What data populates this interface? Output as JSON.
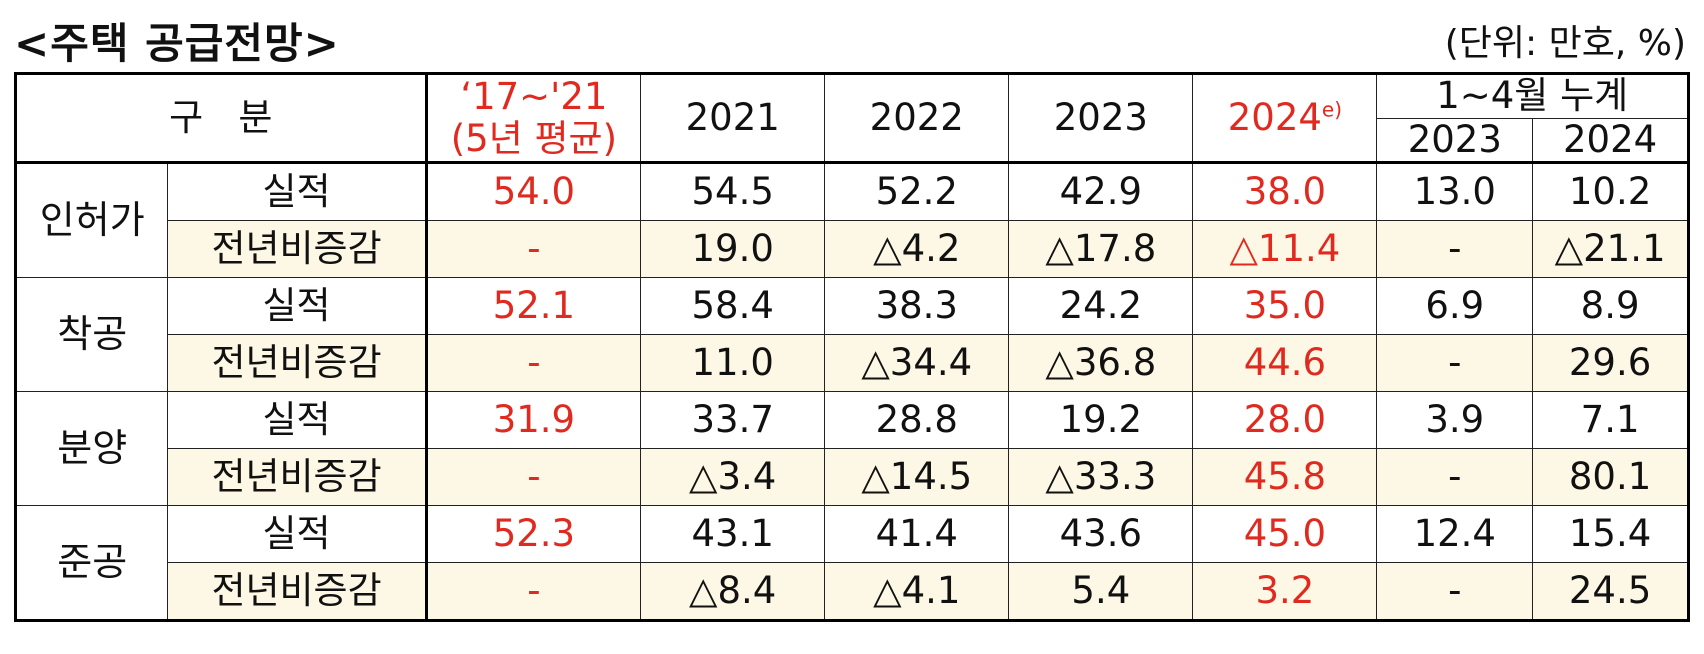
{
  "title": "<주택 공급전망>",
  "unit": "(단위: 만호, %)",
  "header": {
    "category": "구   분",
    "avg_line1": "‘17~'21",
    "avg_line2": "(5년 평균)",
    "y2021": "2021",
    "y2022": "2022",
    "y2023": "2023",
    "y2024": "2024",
    "y2024_sup": "e)",
    "cumulative": "1~4월 누계",
    "cum_2023": "2023",
    "cum_2024": "2024"
  },
  "groups": [
    {
      "name": "인허가",
      "actual": {
        "label": "실적",
        "v": [
          "54.0",
          "54.5",
          "52.2",
          "42.9",
          "38.0",
          "13.0",
          "10.2"
        ]
      },
      "change": {
        "label": "전년비증감",
        "v": [
          "-",
          "19.0",
          "△4.2",
          "△17.8",
          "△11.4",
          "-",
          "△21.1"
        ]
      }
    },
    {
      "name": "착공",
      "actual": {
        "label": "실적",
        "v": [
          "52.1",
          "58.4",
          "38.3",
          "24.2",
          "35.0",
          "6.9",
          "8.9"
        ]
      },
      "change": {
        "label": "전년비증감",
        "v": [
          "-",
          "11.0",
          "△34.4",
          "△36.8",
          "44.6",
          "-",
          "29.6"
        ]
      }
    },
    {
      "name": "분양",
      "actual": {
        "label": "실적",
        "v": [
          "31.9",
          "33.7",
          "28.8",
          "19.2",
          "28.0",
          "3.9",
          "7.1"
        ]
      },
      "change": {
        "label": "전년비증감",
        "v": [
          "-",
          "△3.4",
          "△14.5",
          "△33.3",
          "45.8",
          "-",
          "80.1"
        ]
      }
    },
    {
      "name": "준공",
      "actual": {
        "label": "실적",
        "v": [
          "52.3",
          "43.1",
          "41.4",
          "43.6",
          "45.0",
          "12.4",
          "15.4"
        ]
      },
      "change": {
        "label": "전년비증감",
        "v": [
          "-",
          "△8.4",
          "△4.1",
          "5.4",
          "3.2",
          "-",
          "24.5"
        ]
      }
    }
  ]
}
